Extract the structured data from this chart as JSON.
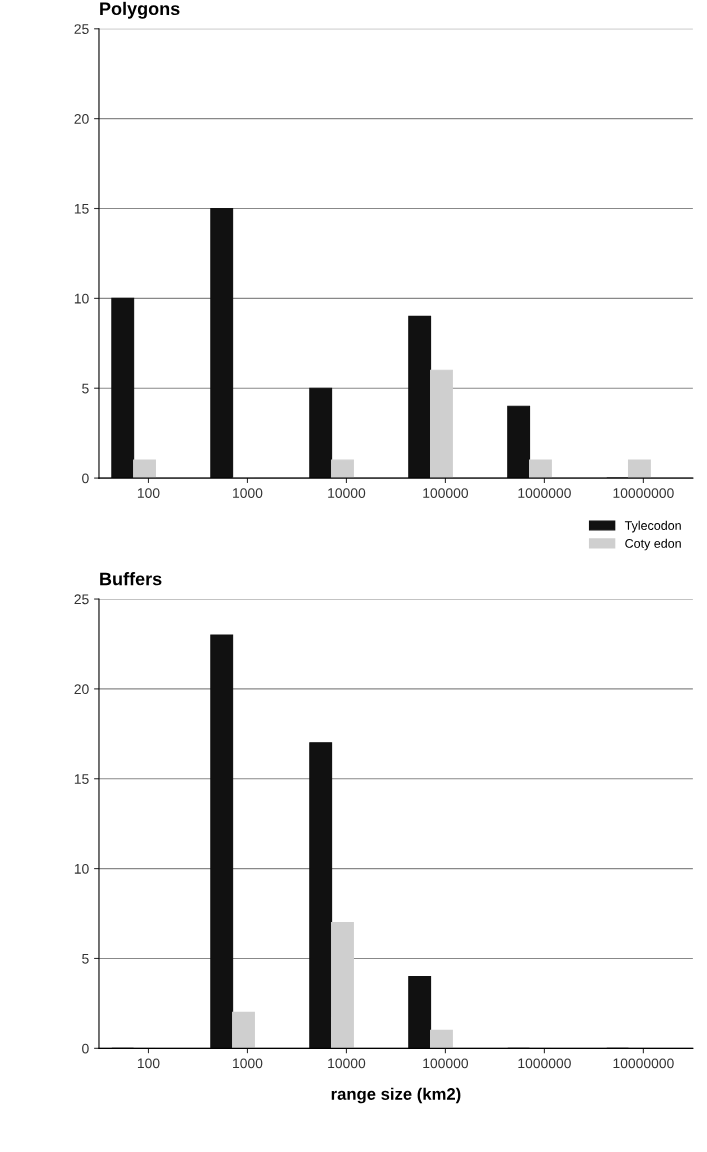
{
  "chart_data": [
    {
      "type": "bar",
      "title": "Polygons",
      "categories": [
        "100",
        "1000",
        "10000",
        "100000",
        "1000000",
        "10000000"
      ],
      "series": [
        {
          "name": "Tylecodon",
          "color": "#111111",
          "values": [
            10,
            15,
            5,
            9,
            4,
            0
          ]
        },
        {
          "name": "Coty edon",
          "color": "#cfcfcf",
          "values": [
            1,
            0,
            1,
            6,
            1,
            1
          ]
        }
      ],
      "ylim": [
        0,
        25
      ],
      "yticks": [
        0,
        5,
        10,
        15,
        20,
        25
      ],
      "grid": "y",
      "legend": "bottom right"
    },
    {
      "type": "bar",
      "title": "Buffers",
      "xlabel": "range size (km2)",
      "categories": [
        "100",
        "1000",
        "10000",
        "100000",
        "1000000",
        "10000000"
      ],
      "series": [
        {
          "color": "#111111",
          "values": [
            0,
            23,
            17,
            4,
            0,
            0
          ]
        },
        {
          "color": "#cfcfcf",
          "values": [
            0,
            2,
            7,
            1,
            0,
            0
          ]
        }
      ],
      "ylim": [
        0,
        25
      ],
      "yticks": [
        0,
        5,
        10,
        15,
        20,
        25
      ],
      "grid": "y"
    }
  ]
}
